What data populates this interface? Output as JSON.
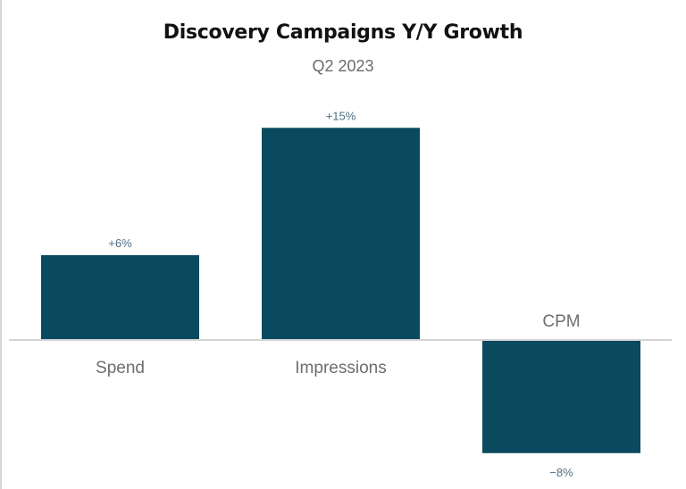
{
  "chart_data": {
    "type": "bar",
    "title": "Discovery Campaigns Y/Y Growth",
    "subtitle": "Q2 2023",
    "categories": [
      "Spend",
      "Impressions",
      "CPM"
    ],
    "values": [
      6,
      15,
      -8
    ],
    "data_labels": [
      "+6%",
      "+15%",
      "−8%"
    ],
    "unit": "%",
    "xlabel": "",
    "ylabel": "",
    "grid": false,
    "legend": "none",
    "colors": {
      "bar": "#0a4a5e",
      "baseline": "#d4d4d4",
      "data_label": "#4e6f82",
      "category_label": "#6e6e6e"
    }
  }
}
